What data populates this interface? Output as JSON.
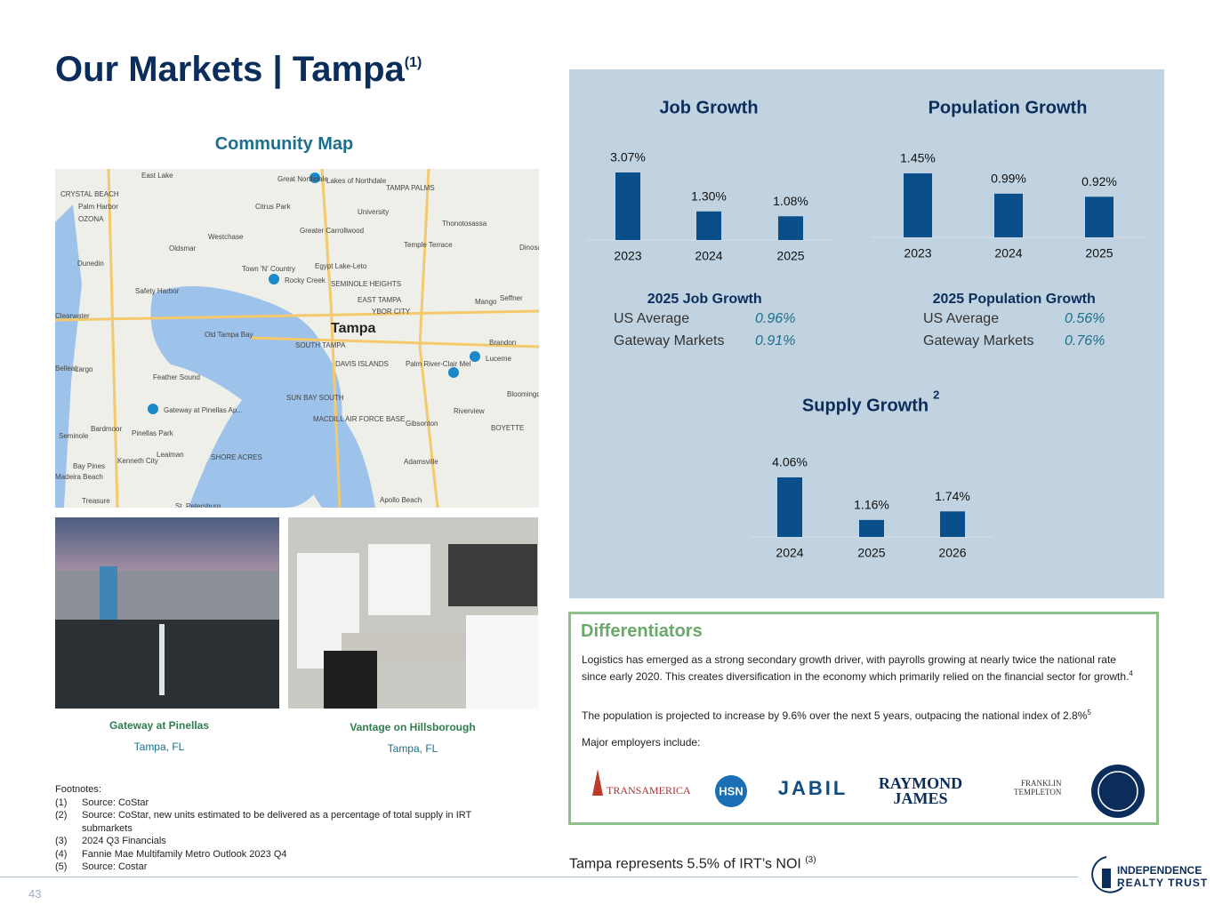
{
  "header": {
    "title": "Our Markets | Tampa",
    "title_note": "(1)"
  },
  "map": {
    "title": "Community Map",
    "labels": [
      "East Lake",
      "Great Northdale",
      "Lakes of Northdale",
      "TAMPA PALMS",
      "CRYSTAL BEACH",
      "Palm Harbor",
      "Citrus Park",
      "University",
      "OZONA",
      "Thonotosassa",
      "Westchase",
      "Greater Carrollwood",
      "Temple Terrace",
      "Oldsmar",
      "Dunedin",
      "Town 'N' Country",
      "Egypt Lake-Leto",
      "Rocky Creek",
      "Safety Harbor",
      "SEMINOLE HEIGHTS",
      "Mango",
      "Seffner",
      "Clearwater",
      "EAST TAMPA",
      "YBOR CITY",
      "Tampa",
      "Old Tampa Bay",
      "SOUTH TAMPA",
      "Brandon",
      "Belleair",
      "Largo",
      "DAVIS ISLANDS",
      "Palm River-Clair Mel",
      "Lucerne",
      "Feather Sound",
      "SUN BAY SOUTH",
      "Bloomingdale",
      "Gateway at Pinellas Ap...",
      "MACDILL AIR FORCE BASE",
      "Riverview",
      "Bardmoor",
      "Pinellas Park",
      "Gibsonton",
      "BOYETTE",
      "Seminole",
      "Leaiman",
      "SHORE ACRES",
      "Kenneth City",
      "Adamsville",
      "Bay Pines",
      "Madeira Beach",
      "Apollo Beach",
      "Treasure",
      "St. Petersburg",
      "Dinosaur"
    ]
  },
  "photos": [
    {
      "name": "Gateway at Pinellas",
      "location": "Tampa, FL"
    },
    {
      "name": "Vantage on Hillsborough",
      "location": "Tampa, FL"
    }
  ],
  "footnotes": {
    "heading": "Footnotes:",
    "items": [
      [
        "(1)",
        "Source: CoStar"
      ],
      [
        "(2)",
        "Source: CoStar, new units estimated to be delivered as a percentage of total supply in IRT submarkets"
      ],
      [
        "(3)",
        "2024 Q3 Financials"
      ],
      [
        "(4)",
        "Fannie Mae Multifamily Metro Outlook 2023 Q4"
      ],
      [
        "(5)",
        "Source: Costar"
      ]
    ]
  },
  "chart_data": [
    {
      "type": "bar",
      "title": "Job Growth",
      "categories": [
        "2023",
        "2024",
        "2025"
      ],
      "values": [
        3.07,
        1.3,
        1.08
      ],
      "value_labels": [
        "3.07%",
        "1.30%",
        "1.08%"
      ],
      "color": "#0b4f8a"
    },
    {
      "type": "bar",
      "title": "Population Growth",
      "categories": [
        "2023",
        "2024",
        "2025"
      ],
      "values": [
        1.45,
        0.99,
        0.92
      ],
      "value_labels": [
        "1.45%",
        "0.99%",
        "0.92%"
      ],
      "color": "#0b4f8a"
    },
    {
      "type": "bar",
      "title": "Supply Growth",
      "title_note": "2",
      "categories": [
        "2024",
        "2025",
        "2026"
      ],
      "values": [
        4.06,
        1.16,
        1.74
      ],
      "value_labels": [
        "4.06%",
        "1.16%",
        "1.74%"
      ],
      "color": "#0b4f8a"
    }
  ],
  "stats": [
    {
      "title": "2025 Job Growth",
      "rows": [
        [
          "US Average",
          "0.96%"
        ],
        [
          "Gateway Markets",
          "0.91%"
        ]
      ]
    },
    {
      "title": "2025 Population Growth",
      "rows": [
        [
          "US Average",
          "0.56%"
        ],
        [
          "Gateway Markets",
          "0.76%"
        ]
      ]
    }
  ],
  "differentiators": {
    "title": "Differentiators",
    "p1": "Logistics has emerged as a strong secondary growth driver, with payrolls growing at nearly twice the national rate since early 2020. This creates diversification in the economy which primarily relied on the financial sector for growth.",
    "p1_note": "4",
    "p2": "The population is projected to increase by 9.6% over the next 5 years, outpacing the national index of 2.8%",
    "p2_note": "5",
    "p3": "Major employers include:",
    "employers": [
      "TRANSAMERICA",
      "HSN",
      "JABIL",
      "RAYMOND",
      "JAMES",
      "FRANKLIN",
      "TEMPLETON"
    ]
  },
  "footer": {
    "noi": "Tampa represents 5.5% of IRT’s NOI",
    "noi_note": "(3)",
    "page": "43",
    "logo1": "INDEPENDENCE",
    "logo2": "REALTY TRUST"
  }
}
